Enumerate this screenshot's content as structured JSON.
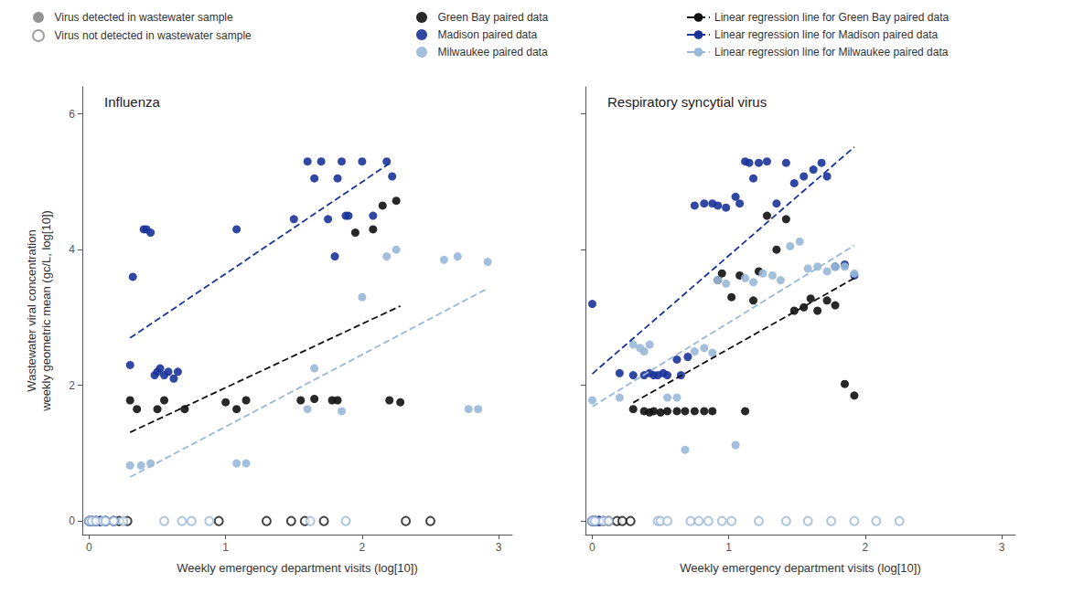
{
  "chart_data": [
    {
      "type": "scatter",
      "title": "Influenza",
      "xlabel": "Weekly emergency department visits (log[10])",
      "ylabel": "Wastewater viral concentration\nweekly geometric mean (gc/L, log[10])",
      "xlim": [
        -0.05,
        3.1
      ],
      "ylim": [
        -0.2,
        6.4
      ],
      "xticks": [
        0,
        1,
        2,
        3
      ],
      "yticks": [
        0,
        2,
        4,
        6
      ],
      "grid": false,
      "legend": "top",
      "series": [
        {
          "name": "Virus detected in wastewater sample",
          "color": "#888888",
          "marker": "circle",
          "x": [],
          "values": []
        },
        {
          "name": "Virus not detected in wastewater sample",
          "color": "#888888",
          "marker": "open circle",
          "x": [],
          "values": []
        },
        {
          "name": "Green Bay paired data",
          "color": "#111111",
          "marker": "circle",
          "x": [
            0.3,
            0.35,
            0.5,
            0.55,
            0.7,
            1.0,
            1.08,
            1.15,
            1.55,
            1.65,
            1.78,
            1.82,
            1.95,
            2.08,
            2.15,
            2.2,
            2.25,
            2.28
          ],
          "values": [
            1.78,
            1.65,
            1.65,
            1.78,
            1.65,
            1.75,
            1.65,
            1.78,
            1.78,
            1.8,
            1.78,
            1.78,
            4.25,
            4.3,
            4.65,
            1.78,
            4.72,
            1.75
          ]
        },
        {
          "name": "Madison paired data",
          "color": "#1a3399",
          "marker": "circle",
          "x": [
            0.3,
            0.32,
            0.4,
            0.42,
            0.45,
            0.48,
            0.5,
            0.52,
            0.55,
            0.58,
            0.62,
            0.65,
            1.08,
            1.5,
            1.6,
            1.65,
            1.7,
            1.75,
            1.8,
            1.82,
            1.85,
            1.88,
            1.9,
            2.0,
            2.08,
            2.18,
            2.22
          ],
          "values": [
            2.3,
            3.6,
            4.3,
            4.3,
            4.25,
            2.15,
            2.2,
            2.25,
            2.15,
            2.2,
            2.1,
            2.2,
            4.3,
            4.45,
            5.3,
            5.05,
            5.3,
            4.45,
            3.9,
            5.05,
            5.3,
            4.5,
            4.5,
            5.3,
            4.5,
            5.3,
            5.08
          ]
        },
        {
          "name": "Milwaukee paired data",
          "color": "#99b8d8",
          "marker": "circle",
          "x": [
            0.3,
            0.38,
            0.45,
            1.08,
            1.15,
            1.6,
            1.65,
            1.85,
            2.0,
            2.18,
            2.25,
            2.6,
            2.7,
            2.78,
            2.85,
            2.92
          ],
          "values": [
            0.82,
            0.82,
            0.85,
            0.85,
            0.85,
            1.65,
            2.25,
            1.62,
            3.3,
            3.9,
            4.0,
            3.85,
            3.9,
            1.65,
            1.65,
            3.82
          ]
        },
        {
          "name": "Green Bay paired data",
          "color": "#111111",
          "marker": "open circle",
          "x": [
            0.0,
            0.02,
            0.05,
            0.08,
            0.12,
            0.18,
            0.22,
            0.28,
            0.95,
            1.3,
            1.48,
            1.58,
            1.72,
            2.32,
            2.5
          ],
          "values": [
            0.0,
            0.0,
            0.0,
            0.0,
            0.0,
            0.0,
            0.0,
            0.0,
            0.0,
            0.0,
            0.0,
            0.0,
            0.0,
            0.0,
            0.0
          ]
        },
        {
          "name": "Madison paired data",
          "color": "#1a3399",
          "marker": "open circle",
          "x": [
            0.0,
            0.02,
            0.05,
            0.08,
            0.12,
            0.18
          ],
          "values": [
            0.0,
            0.0,
            0.0,
            0.0,
            0.0,
            0.0
          ]
        },
        {
          "name": "Milwaukee paired data",
          "color": "#99b8d8",
          "marker": "open circle",
          "x": [
            0.0,
            0.02,
            0.05,
            0.1,
            0.12,
            0.18,
            0.25,
            0.55,
            0.68,
            0.75,
            0.88,
            1.62,
            1.88
          ],
          "values": [
            0.0,
            0.0,
            0.0,
            0.0,
            0.0,
            0.0,
            0.0,
            0.0,
            0.0,
            0.0,
            0.0,
            0.0,
            0.0
          ]
        },
        {
          "name": "Linear regression line for Green Bay paired data",
          "type": "line",
          "line_style": "dashed",
          "color": "#111111",
          "x": [
            0.3,
            2.28
          ],
          "values": [
            1.3071,
            3.1691
          ]
        },
        {
          "name": "Linear regression line for Madison paired data",
          "type": "line",
          "line_style": "dashed",
          "color": "#1a3399",
          "x": [
            0.3,
            2.22
          ],
          "values": [
            2.6979,
            5.2971
          ]
        },
        {
          "name": "Linear regression line for Milwaukee paired data",
          "type": "line",
          "line_style": "dashed",
          "color": "#99b8d8",
          "x": [
            0.3,
            2.92
          ],
          "values": [
            0.6481,
            3.429
          ]
        }
      ]
    },
    {
      "type": "scatter",
      "title": "Respiratory syncytial virus",
      "xlabel": "Weekly emergency department visits (log[10])",
      "xlim": [
        -0.05,
        3.1
      ],
      "ylim": [
        -0.2,
        6.4
      ],
      "xticks": [
        0,
        1,
        2,
        3
      ],
      "yticks": [
        0,
        2,
        4,
        6
      ],
      "grid": false,
      "tick_labels": "x",
      "series": [
        {
          "name": "Green Bay paired data",
          "color": "#111111",
          "marker": "circle",
          "x": [
            0.3,
            0.38,
            0.42,
            0.45,
            0.5,
            0.55,
            0.62,
            0.68,
            0.75,
            0.82,
            0.88,
            0.92,
            0.95,
            1.02,
            1.08,
            1.12,
            1.18,
            1.22,
            1.28,
            1.35,
            1.42,
            1.48,
            1.55,
            1.6,
            1.65,
            1.72,
            1.78,
            1.85,
            1.92
          ],
          "values": [
            1.65,
            1.62,
            1.6,
            1.62,
            1.6,
            1.62,
            1.62,
            1.62,
            1.62,
            1.62,
            1.62,
            3.55,
            3.65,
            3.3,
            3.62,
            1.62,
            3.25,
            3.68,
            4.5,
            4.0,
            4.45,
            3.1,
            3.15,
            3.28,
            3.1,
            3.25,
            3.18,
            2.02,
            1.85
          ]
        },
        {
          "name": "Madison paired data",
          "color": "#1a3399",
          "marker": "circle",
          "x": [
            0.0,
            0.2,
            0.3,
            0.38,
            0.42,
            0.45,
            0.48,
            0.52,
            0.55,
            0.62,
            0.65,
            0.7,
            0.75,
            0.82,
            0.88,
            0.92,
            0.98,
            1.05,
            1.08,
            1.12,
            1.15,
            1.18,
            1.22,
            1.28,
            1.35,
            1.42,
            1.48,
            1.55,
            1.62,
            1.68,
            1.72,
            1.78,
            1.85,
            1.92
          ],
          "values": [
            3.2,
            2.18,
            2.15,
            2.15,
            2.18,
            2.15,
            2.15,
            2.18,
            2.15,
            2.38,
            2.15,
            2.42,
            4.65,
            4.68,
            4.68,
            4.65,
            4.62,
            4.78,
            4.68,
            5.3,
            5.28,
            5.05,
            5.28,
            5.3,
            4.68,
            5.28,
            4.98,
            5.08,
            5.18,
            5.28,
            5.08,
            3.75,
            3.78,
            3.62
          ]
        },
        {
          "name": "Milwaukee paired data",
          "color": "#99b8d8",
          "marker": "circle",
          "x": [
            0.0,
            0.2,
            0.3,
            0.35,
            0.38,
            0.42,
            0.55,
            0.62,
            0.68,
            0.75,
            0.82,
            0.88,
            0.92,
            0.98,
            1.05,
            1.12,
            1.18,
            1.25,
            1.32,
            1.38,
            1.45,
            1.52,
            1.58,
            1.65,
            1.72,
            1.78,
            1.85,
            1.92
          ],
          "values": [
            1.78,
            1.82,
            2.6,
            2.55,
            2.5,
            2.6,
            1.82,
            1.82,
            1.05,
            2.5,
            2.55,
            2.48,
            3.55,
            3.5,
            1.12,
            3.58,
            3.52,
            3.65,
            3.62,
            3.55,
            4.05,
            4.12,
            3.72,
            3.75,
            3.68,
            3.75,
            3.75,
            3.65
          ]
        },
        {
          "name": "Green Bay paired data",
          "color": "#111111",
          "marker": "open circle",
          "x": [
            0.0,
            0.02,
            0.05,
            0.08,
            0.12,
            0.18,
            0.22,
            0.28
          ],
          "values": [
            0.0,
            0.0,
            0.0,
            0.0,
            0.0,
            0.0,
            0.0,
            0.0
          ]
        },
        {
          "name": "Madison paired data",
          "color": "#1a3399",
          "marker": "open circle",
          "x": [
            0.0,
            0.02,
            0.05
          ],
          "values": [
            0.0,
            0.0,
            0.0
          ]
        },
        {
          "name": "Milwaukee paired data",
          "color": "#99b8d8",
          "marker": "open circle",
          "x": [
            0.0,
            0.02,
            0.08,
            0.12,
            0.48,
            0.5,
            0.55,
            0.72,
            0.78,
            0.85,
            0.95,
            1.02,
            1.22,
            1.42,
            1.58,
            1.75,
            1.92,
            2.08,
            2.25
          ],
          "values": [
            0.0,
            0.0,
            0.0,
            0.0,
            0.0,
            0.0,
            0.0,
            0.0,
            0.0,
            0.0,
            0.0,
            0.0,
            0.0,
            0.0,
            0.0,
            0.0,
            0.0,
            0.0,
            0.0
          ]
        },
        {
          "name": "Linear regression line for Green Bay paired data",
          "type": "line",
          "line_style": "dashed",
          "color": "#111111",
          "x": [
            0.3,
            1.92
          ],
          "values": [
            1.745,
            3.5798
          ]
        },
        {
          "name": "Linear regression line for Madison paired data",
          "type": "line",
          "line_style": "dashed",
          "color": "#1a3399",
          "x": [
            0.0,
            1.92
          ],
          "values": [
            2.1695,
            5.5134
          ]
        },
        {
          "name": "Linear regression line for Milwaukee paired data",
          "type": "line",
          "line_style": "dashed",
          "color": "#99b8d8",
          "x": [
            0.0,
            1.92
          ],
          "values": [
            1.6864,
            4.062
          ]
        }
      ]
    }
  ]
}
